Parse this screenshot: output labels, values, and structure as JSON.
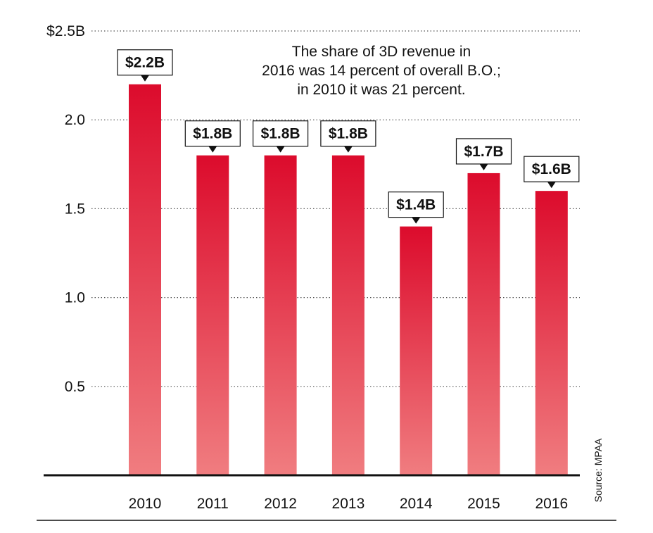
{
  "chart_data": {
    "type": "bar",
    "categories": [
      "2010",
      "2011",
      "2012",
      "2013",
      "2014",
      "2015",
      "2016"
    ],
    "values": [
      2.2,
      1.8,
      1.8,
      1.8,
      1.4,
      1.7,
      1.6
    ],
    "value_labels": [
      "$2.2B",
      "$1.8B",
      "$1.8B",
      "$1.8B",
      "$1.4B",
      "$1.7B",
      "$1.6B"
    ],
    "yticks": [
      0.5,
      1.0,
      1.5,
      2.0,
      2.5
    ],
    "ytick_labels": [
      "0.5",
      "1.0",
      "1.5",
      "2.0",
      "$2.5B"
    ],
    "ylim": [
      0,
      2.5
    ],
    "title": "",
    "xlabel": "",
    "ylabel": "",
    "annotation": [
      "The share of 3D revenue in",
      "2016 was 14 percent of overall B.O.;",
      "in 2010 it was 21 percent."
    ],
    "source": "Source: MPAA",
    "grid": "dotted horizontal",
    "colors": {
      "bar_top": "#dc0b2c",
      "bar_bottom": "#f07d80",
      "axis": "#111111",
      "grid": "#555555"
    }
  }
}
